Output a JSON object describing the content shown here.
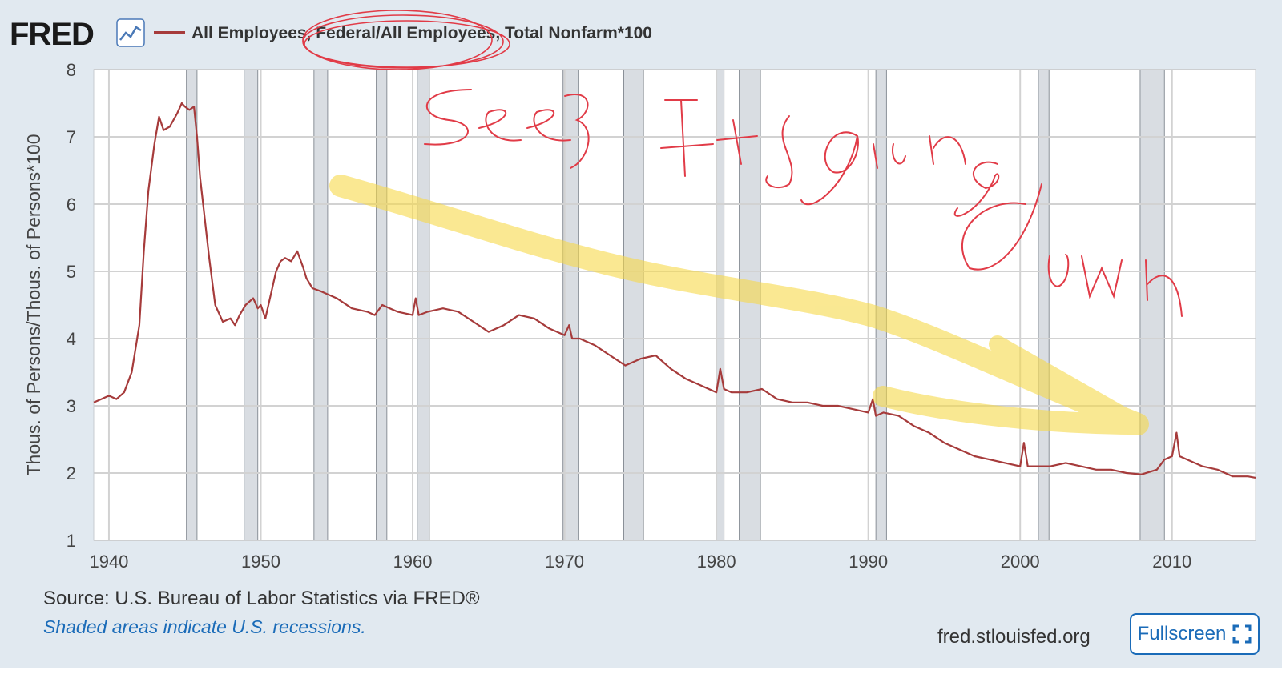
{
  "logo": {
    "text": "FRED"
  },
  "legend": {
    "series_label": "All Employees, Federal/All Employees, Total Nonfarm*100",
    "icon": "chart-line-icon"
  },
  "colors": {
    "series": "#a63b3b",
    "recession": "#d9dde2",
    "grid": "#d2d2d2",
    "accent": "#1a6bb8",
    "highlighter": "#f6d94a",
    "ink": "#e13b47"
  },
  "chart_data": {
    "type": "line",
    "title": "All Employees, Federal/All Employees, Total Nonfarm*100",
    "xlabel": "",
    "ylabel": "Thous. of Persons/Thous. of Persons*100",
    "xlim": [
      1939,
      2015.5
    ],
    "ylim": [
      1,
      8
    ],
    "x_ticks": [
      1940,
      1950,
      1960,
      1970,
      1980,
      1990,
      2000,
      2010
    ],
    "y_ticks": [
      1,
      2,
      3,
      4,
      5,
      6,
      7,
      8
    ],
    "grid": true,
    "recessions": [
      [
        1945.1,
        1945.8
      ],
      [
        1948.9,
        1949.8
      ],
      [
        1953.5,
        1954.4
      ],
      [
        1957.6,
        1958.3
      ],
      [
        1960.3,
        1961.1
      ],
      [
        1969.9,
        1970.9
      ],
      [
        1973.9,
        1975.2
      ],
      [
        1980.0,
        1980.5
      ],
      [
        1981.5,
        1982.9
      ],
      [
        1990.5,
        1991.2
      ],
      [
        2001.2,
        2001.9
      ],
      [
        2007.9,
        2009.5
      ]
    ],
    "series": [
      {
        "name": "All Employees, Federal/All Employees, Total Nonfarm*100",
        "x": [
          1939,
          1939.5,
          1940,
          1940.5,
          1941,
          1941.5,
          1942,
          1942.3,
          1942.6,
          1943,
          1943.3,
          1943.6,
          1944,
          1944.5,
          1944.8,
          1945,
          1945.3,
          1945.6,
          1945.8,
          1946,
          1946.3,
          1946.6,
          1947,
          1947.5,
          1948,
          1948.3,
          1948.6,
          1949,
          1949.5,
          1949.8,
          1950,
          1950.3,
          1950.6,
          1951,
          1951.3,
          1951.6,
          1952,
          1952.4,
          1952.8,
          1953,
          1953.4,
          1954,
          1955,
          1956,
          1957,
          1957.5,
          1958,
          1958.5,
          1959,
          1960,
          1960.2,
          1960.4,
          1961,
          1962,
          1963,
          1964,
          1965,
          1966,
          1967,
          1968,
          1969,
          1970,
          1970.3,
          1970.5,
          1971,
          1972,
          1973,
          1974,
          1975,
          1976,
          1977,
          1978,
          1979,
          1980,
          1980.25,
          1980.5,
          1981,
          1982,
          1983,
          1984,
          1985,
          1986,
          1987,
          1988,
          1989,
          1990,
          1990.3,
          1990.5,
          1991,
          1992,
          1993,
          1994,
          1995,
          1996,
          1997,
          1998,
          1999,
          2000,
          2000.25,
          2000.5,
          2001,
          2002,
          2003,
          2004,
          2005,
          2006,
          2007,
          2008,
          2009,
          2009.5,
          2010,
          2010.3,
          2010.5,
          2011,
          2012,
          2013,
          2014,
          2015,
          2015.5
        ],
        "values": [
          3.05,
          3.1,
          3.15,
          3.1,
          3.2,
          3.5,
          4.2,
          5.3,
          6.2,
          6.9,
          7.3,
          7.1,
          7.15,
          7.35,
          7.5,
          7.45,
          7.4,
          7.45,
          7.0,
          6.4,
          5.8,
          5.2,
          4.5,
          4.25,
          4.3,
          4.2,
          4.35,
          4.5,
          4.6,
          4.45,
          4.5,
          4.3,
          4.6,
          5.0,
          5.15,
          5.2,
          5.15,
          5.3,
          5.05,
          4.9,
          4.75,
          4.7,
          4.6,
          4.45,
          4.4,
          4.35,
          4.5,
          4.45,
          4.4,
          4.35,
          4.6,
          4.35,
          4.4,
          4.45,
          4.4,
          4.25,
          4.1,
          4.2,
          4.35,
          4.3,
          4.15,
          4.05,
          4.2,
          4.0,
          4.0,
          3.9,
          3.75,
          3.6,
          3.7,
          3.75,
          3.55,
          3.4,
          3.3,
          3.2,
          3.55,
          3.25,
          3.2,
          3.2,
          3.25,
          3.1,
          3.05,
          3.05,
          3.0,
          3.0,
          2.95,
          2.9,
          3.1,
          2.85,
          2.9,
          2.85,
          2.7,
          2.6,
          2.45,
          2.35,
          2.25,
          2.2,
          2.15,
          2.1,
          2.45,
          2.1,
          2.1,
          2.1,
          2.15,
          2.1,
          2.05,
          2.05,
          2.0,
          1.98,
          2.05,
          2.2,
          2.25,
          2.6,
          2.25,
          2.2,
          2.1,
          2.05,
          1.95,
          1.95,
          1.93
        ]
      }
    ]
  },
  "footer": {
    "source": "Source: U.S. Bureau of Labor Statistics via FRED®",
    "note": "Shaded areas indicate U.S. recessions.",
    "site": "fred.stlouisfed.org",
    "fullscreen_label": "Fullscreen"
  }
}
